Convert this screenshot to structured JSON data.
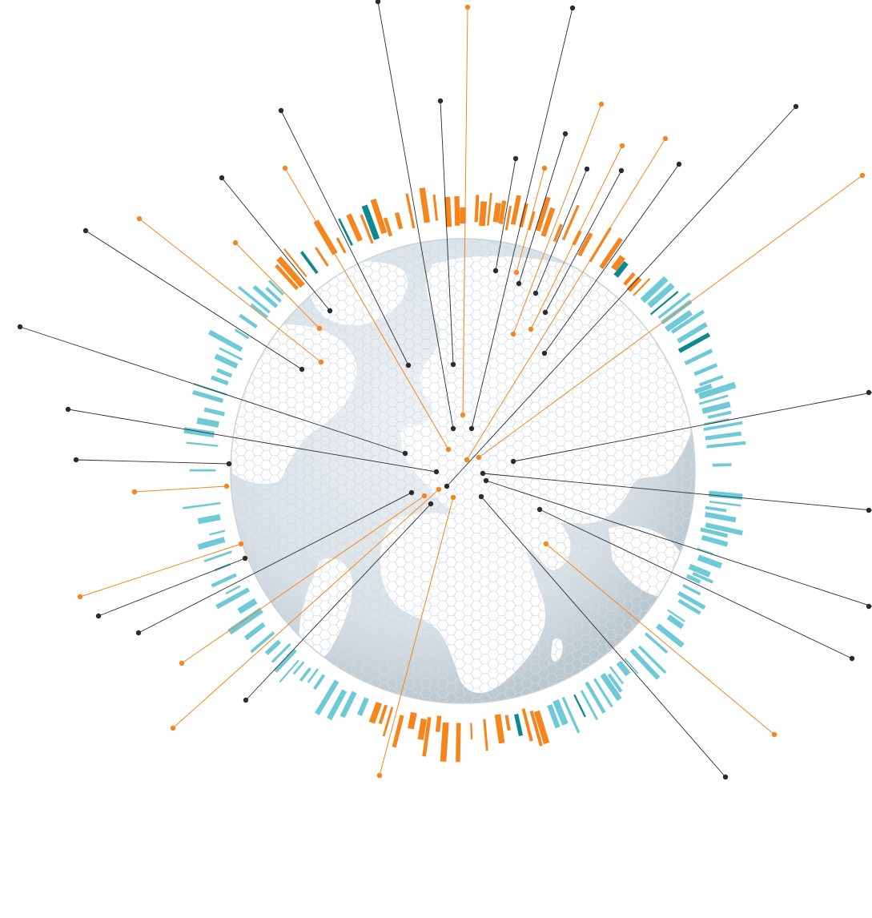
{
  "colors": {
    "orange": "#f5851f",
    "cyan": "#6fcad8",
    "teal": "#0e8a8f",
    "dark": "#2b2b2b",
    "globe_light": "#eef2f5",
    "globe_mid": "#d5dee4",
    "globe_dark": "#b9c6cf",
    "land": "#ffffff",
    "hex_line": "#d6dde2"
  },
  "icons": [
    "globe-illustration",
    "connection-line",
    "endpoint-dot",
    "ring-bar"
  ]
}
